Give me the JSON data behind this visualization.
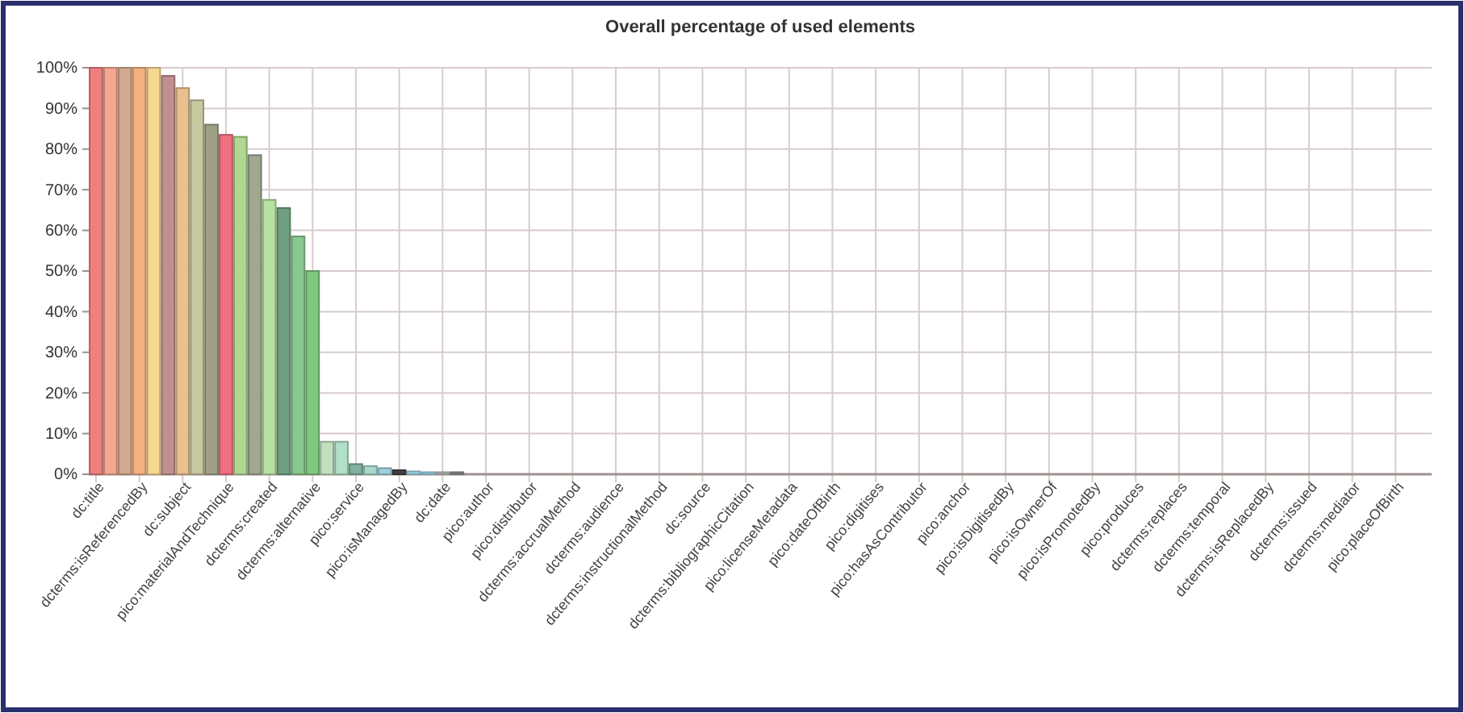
{
  "chart_data": {
    "type": "bar",
    "title": "Overall percentage of used elements",
    "categories": [
      "dc:title",
      null,
      null,
      "dcterms:isReferencedBy",
      null,
      null,
      "dc:subject",
      null,
      null,
      "pico:materialAndTechnique",
      null,
      null,
      "dcterms:created",
      null,
      null,
      "dcterms:alternative",
      null,
      null,
      "pico:service",
      null,
      null,
      "pico:isManagedBy",
      null,
      null,
      "dc:date",
      null,
      null,
      "pico:author",
      null,
      null,
      "pico:distributor",
      null,
      null,
      "dcterms:accrualMethod",
      null,
      null,
      "dcterms:audience",
      null,
      null,
      "dcterms:instructionalMethod",
      null,
      null,
      "dc:source",
      null,
      null,
      "dcterms:bibliographicCitation",
      null,
      null,
      "pico:licenseMetadata",
      null,
      null,
      "pico:dateOfBirth",
      null,
      null,
      "pico:digitises",
      null,
      null,
      "pico:hasAsContributor",
      null,
      null,
      "pico:anchor",
      null,
      null,
      "pico:isDigitisedBy",
      null,
      null,
      "pico:isOwnerOf",
      null,
      null,
      "pico:isPromotedBy",
      null,
      null,
      "pico:produces",
      null,
      null,
      "dcterms:replaces",
      null,
      null,
      "dcterms:temporal",
      null,
      null,
      "dcterms:isReplacedBy",
      null,
      null,
      "dcterms:issued",
      null,
      null,
      "dcterms:mediator",
      null,
      null,
      "pico:placeOfBirth",
      null,
      null
    ],
    "values": [
      100,
      100,
      100,
      100,
      100,
      98,
      95,
      92,
      86,
      83.5,
      83,
      78.5,
      67.5,
      65.5,
      58.5,
      50,
      8,
      8,
      2.5,
      2,
      1.5,
      1,
      0.7,
      0.5,
      0.5,
      0.5,
      0,
      0,
      0,
      0,
      0,
      0,
      0,
      0,
      0,
      0,
      0,
      0,
      0,
      0,
      0,
      0,
      0,
      0,
      0,
      0,
      0,
      0,
      0,
      0,
      0,
      0,
      0,
      0,
      0,
      0,
      0,
      0,
      0,
      0,
      0,
      0,
      0,
      0,
      0,
      0,
      0,
      0,
      0,
      0,
      0,
      0,
      0,
      0,
      0,
      0,
      0,
      0,
      0,
      0,
      0,
      0,
      0,
      0,
      0,
      0,
      0,
      0,
      0,
      0,
      0,
      0,
      0
    ],
    "colors": [
      "#f08080",
      "#f4a890",
      "#d4a890",
      "#f4b080",
      "#f8d890",
      "#c09090",
      "#e8c090",
      "#c8c8a0",
      "#a0a088",
      "#f07080",
      "#b0d890",
      "#a0a890",
      "#b8e0a0",
      "#70a080",
      "#88c890",
      "#80c880",
      "#c0e0c0",
      "#b0e0c8",
      "#80b0a0",
      "#a8d8d0",
      "#a0d0e0",
      "#404040",
      "#a0d8e8",
      "#a0d8e8",
      "#c0c0c0",
      "#909090",
      "#cccccc",
      "#cccccc",
      "#cccccc",
      "#cccccc",
      "#cccccc",
      "#cccccc",
      "#cccccc",
      "#cccccc",
      "#cccccc",
      "#cccccc",
      "#cccccc",
      "#cccccc",
      "#cccccc",
      "#cccccc",
      "#cccccc",
      "#cccccc",
      "#cccccc",
      "#cccccc",
      "#cccccc",
      "#cccccc",
      "#cccccc",
      "#cccccc",
      "#cccccc",
      "#cccccc",
      "#cccccc",
      "#cccccc",
      "#cccccc",
      "#cccccc",
      "#cccccc",
      "#cccccc",
      "#cccccc",
      "#cccccc",
      "#cccccc",
      "#cccccc",
      "#cccccc",
      "#cccccc",
      "#cccccc",
      "#cccccc",
      "#cccccc",
      "#cccccc",
      "#cccccc",
      "#cccccc",
      "#cccccc",
      "#cccccc",
      "#cccccc",
      "#cccccc",
      "#cccccc",
      "#cccccc",
      "#cccccc",
      "#cccccc",
      "#cccccc",
      "#cccccc",
      "#cccccc",
      "#cccccc",
      "#cccccc",
      "#cccccc",
      "#cccccc",
      "#cccccc",
      "#cccccc",
      "#cccccc",
      "#cccccc",
      "#cccccc",
      "#cccccc",
      "#cccccc",
      "#cccccc",
      "#cccccc",
      "#cccccc"
    ],
    "ylim": [
      0,
      100
    ],
    "yticks": [
      {
        "value": 0,
        "label": "0%"
      },
      {
        "value": 10,
        "label": "10%"
      },
      {
        "value": 20,
        "label": "20%"
      },
      {
        "value": 30,
        "label": "30%"
      },
      {
        "value": 40,
        "label": "40%"
      },
      {
        "value": 50,
        "label": "50%"
      },
      {
        "value": 60,
        "label": "60%"
      },
      {
        "value": 70,
        "label": "70%"
      },
      {
        "value": 80,
        "label": "80%"
      },
      {
        "value": 90,
        "label": "90%"
      },
      {
        "value": 100,
        "label": "100%"
      }
    ],
    "grid": true
  }
}
